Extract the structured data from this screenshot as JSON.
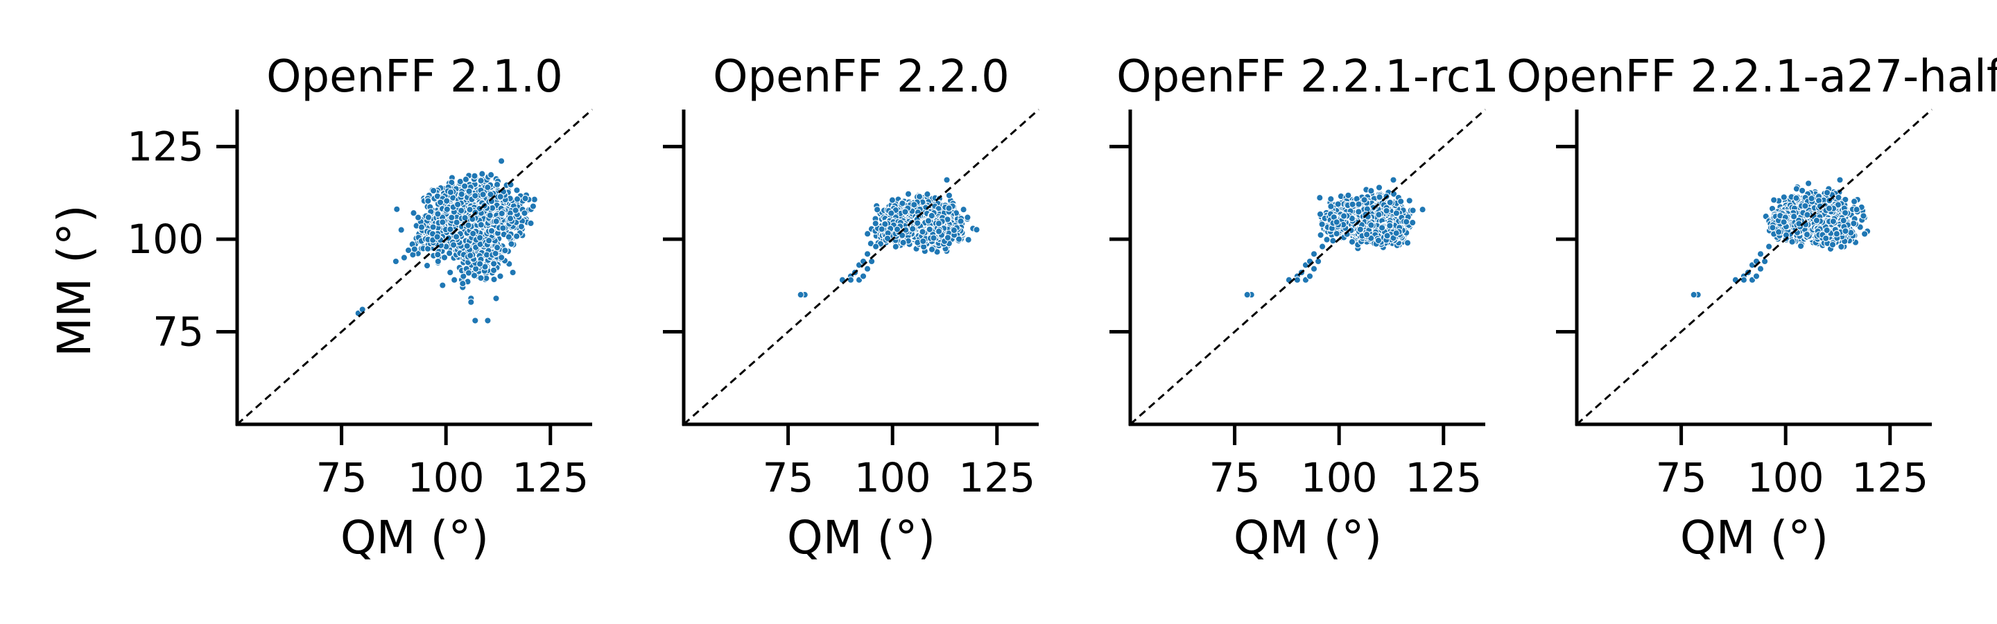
{
  "colors": {
    "points": "#1f77b4",
    "point_edge": "#ffffff",
    "axis": "#000000",
    "reference_line": "#000000"
  },
  "chart_data": [
    {
      "type": "scatter",
      "title": "OpenFF 2.1.0",
      "xlabel": "QM (°)",
      "ylabel": "MM (°)",
      "xlim": [
        50,
        135
      ],
      "ylim": [
        50,
        135
      ],
      "xticks": [
        75,
        100,
        125
      ],
      "yticks": [
        75,
        100,
        125
      ],
      "reference_line": "y = x",
      "grid": false,
      "legend": "none",
      "clusters": [
        {
          "center": [
            106,
            106
          ],
          "spread": [
            5.5,
            5.5
          ],
          "count": 1500
        },
        {
          "center": [
            108,
            97
          ],
          "spread": [
            3,
            4
          ],
          "count": 350
        },
        {
          "center": [
            112,
            107
          ],
          "spread": [
            4,
            4
          ],
          "count": 400
        },
        {
          "center": [
            97,
            101
          ],
          "spread": [
            3,
            4
          ],
          "count": 120
        }
      ],
      "points": [
        [
          79,
          80
        ],
        [
          80,
          81
        ],
        [
          88,
          94
        ],
        [
          90,
          95
        ],
        [
          91,
          97
        ],
        [
          104,
          87
        ],
        [
          104,
          88
        ],
        [
          106,
          84
        ],
        [
          106,
          83
        ],
        [
          107,
          78
        ],
        [
          110,
          78
        ],
        [
          112,
          84
        ],
        [
          113,
          90
        ],
        [
          116,
          91
        ],
        [
          101,
          91
        ],
        [
          102,
          89
        ],
        [
          119,
          111
        ]
      ]
    },
    {
      "type": "scatter",
      "title": "OpenFF 2.2.0",
      "xlabel": "QM (°)",
      "ylabel": "",
      "xlim": [
        50,
        135
      ],
      "ylim": [
        50,
        135
      ],
      "xticks": [
        75,
        100,
        125
      ],
      "yticks": [
        75,
        100,
        125
      ],
      "reference_line": "y = x",
      "grid": false,
      "legend": "none",
      "clusters": [
        {
          "center": [
            107,
            105
          ],
          "spread": [
            4.5,
            3
          ],
          "count": 1400
        },
        {
          "center": [
            111,
            102
          ],
          "spread": [
            3.5,
            2
          ],
          "count": 300
        },
        {
          "center": [
            100,
            102
          ],
          "spread": [
            2.5,
            2
          ],
          "count": 150
        }
      ],
      "points": [
        [
          79,
          85
        ],
        [
          78,
          85
        ],
        [
          88,
          89
        ],
        [
          90,
          90
        ],
        [
          91,
          91
        ],
        [
          92,
          93
        ],
        [
          93,
          94
        ],
        [
          94,
          92
        ],
        [
          92,
          89
        ],
        [
          95,
          94
        ],
        [
          90,
          89
        ],
        [
          93,
          90
        ],
        [
          94,
          96
        ],
        [
          96,
          98
        ],
        [
          117,
          108
        ],
        [
          113,
          116
        ]
      ]
    },
    {
      "type": "scatter",
      "title": "OpenFF 2.2.1-rc1",
      "xlabel": "QM (°)",
      "ylabel": "",
      "xlim": [
        50,
        135
      ],
      "ylim": [
        50,
        135
      ],
      "xticks": [
        75,
        100,
        125
      ],
      "yticks": [
        75,
        100,
        125
      ],
      "reference_line": "y = x",
      "grid": false,
      "legend": "none",
      "clusters": [
        {
          "center": [
            107,
            106
          ],
          "spread": [
            4.5,
            3
          ],
          "count": 1400
        },
        {
          "center": [
            111,
            102
          ],
          "spread": [
            3.5,
            2
          ],
          "count": 300
        },
        {
          "center": [
            100,
            104
          ],
          "spread": [
            2.5,
            2
          ],
          "count": 150
        }
      ],
      "points": [
        [
          79,
          85
        ],
        [
          78,
          85
        ],
        [
          88,
          89
        ],
        [
          90,
          90
        ],
        [
          91,
          91
        ],
        [
          92,
          93
        ],
        [
          93,
          94
        ],
        [
          94,
          92
        ],
        [
          92,
          89
        ],
        [
          95,
          94
        ],
        [
          90,
          89
        ],
        [
          93,
          90
        ],
        [
          94,
          96
        ],
        [
          96,
          98
        ],
        [
          120,
          108
        ],
        [
          113,
          116
        ]
      ]
    },
    {
      "type": "scatter",
      "title": "OpenFF 2.2.1-a27-half",
      "xlabel": "QM (°)",
      "ylabel": "",
      "xlim": [
        50,
        135
      ],
      "ylim": [
        50,
        135
      ],
      "xticks": [
        75,
        100,
        125
      ],
      "yticks": [
        75,
        100,
        125
      ],
      "reference_line": "y = x",
      "grid": false,
      "legend": "none",
      "clusters": [
        {
          "center": [
            107,
            106
          ],
          "spread": [
            4.5,
            3
          ],
          "count": 1400
        },
        {
          "center": [
            111,
            102
          ],
          "spread": [
            3.5,
            2
          ],
          "count": 300
        },
        {
          "center": [
            100,
            104
          ],
          "spread": [
            2.5,
            2
          ],
          "count": 150
        }
      ],
      "points": [
        [
          79,
          85
        ],
        [
          78,
          85
        ],
        [
          88,
          89
        ],
        [
          90,
          90
        ],
        [
          91,
          91
        ],
        [
          92,
          93
        ],
        [
          93,
          94
        ],
        [
          94,
          92
        ],
        [
          92,
          89
        ],
        [
          95,
          94
        ],
        [
          90,
          89
        ],
        [
          93,
          90
        ],
        [
          94,
          96
        ],
        [
          96,
          98
        ],
        [
          117,
          108
        ],
        [
          113,
          116
        ]
      ]
    }
  ]
}
